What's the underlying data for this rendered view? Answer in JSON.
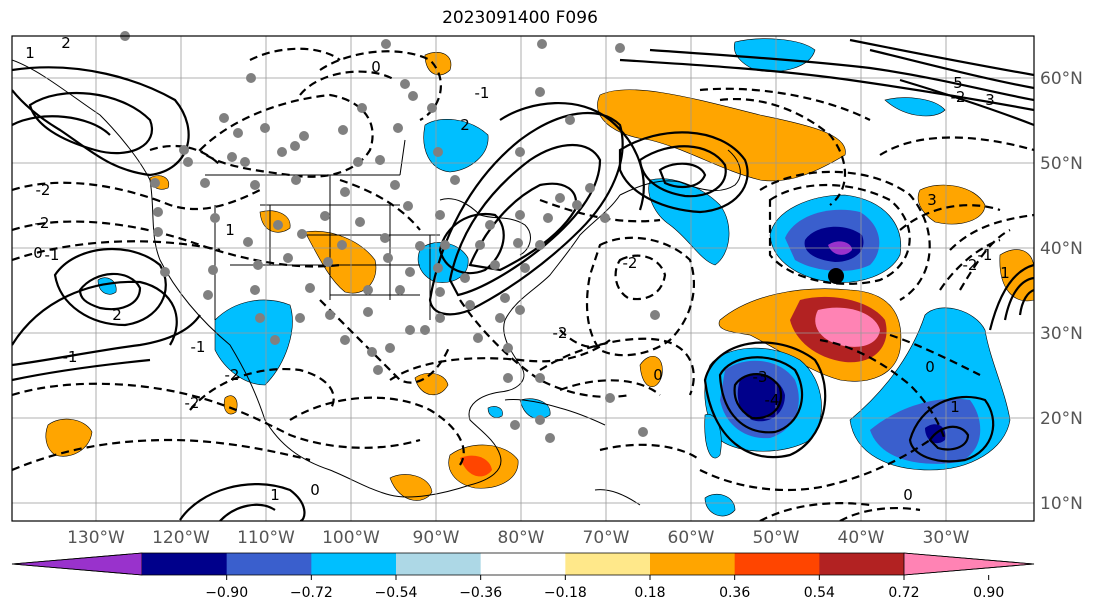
{
  "title": "2023091400 F096",
  "lon_labels": [
    "130°W",
    "120°W",
    "110°W",
    "100°W",
    "90°W",
    "80°W",
    "70°W",
    "60°W",
    "50°W",
    "40°W",
    "30°W"
  ],
  "lat_labels": [
    "60°N",
    "50°N",
    "40°N",
    "30°N",
    "20°N",
    "10°N"
  ],
  "colorbar": {
    "ticks": [
      "−0.90",
      "−0.72",
      "−0.54",
      "−0.36",
      "−0.18",
      "0.18",
      "0.36",
      "0.54",
      "0.72",
      "0.90"
    ],
    "colors": [
      "#9932cc",
      "#00008b",
      "#3a5fcd",
      "#00bfff",
      "#add8e6",
      "#ffffff",
      "#ffe88a",
      "#ffa500",
      "#ff4500",
      "#b22222",
      "#ff83b4"
    ]
  },
  "contour_labels": [
    "1",
    "2",
    "0",
    "2",
    "0",
    "-2",
    "-1",
    "0",
    "-2",
    "-2",
    "-1",
    "2",
    "-3",
    "-4",
    "-2",
    "1",
    "-2",
    "0",
    "-1",
    "-2",
    "3",
    "-2",
    "1",
    "0",
    "0",
    "1",
    "-2",
    "1",
    "-1",
    "-1",
    "0",
    "-2",
    "-2",
    "-2",
    "0",
    "1",
    "5",
    "3",
    "-1"
  ],
  "colors": {
    "background": "#ffffff",
    "map_line": "#000000",
    "grid": "#999999",
    "station_dot": "#808080"
  }
}
